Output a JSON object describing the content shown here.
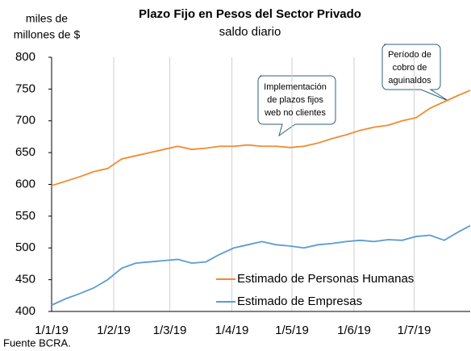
{
  "chart_data": {
    "type": "line",
    "title": "Plazo Fijo en Pesos del Sector Privado",
    "subtitle": "saldo diario",
    "y_label": [
      "miles de",
      "millones de $"
    ],
    "source": "Fuente BCRA.",
    "x": [
      "2019-01-01",
      "2019-01-08",
      "2019-01-15",
      "2019-01-22",
      "2019-01-29",
      "2019-02-05",
      "2019-02-12",
      "2019-02-19",
      "2019-02-26",
      "2019-03-05",
      "2019-03-12",
      "2019-03-19",
      "2019-03-26",
      "2019-04-02",
      "2019-04-09",
      "2019-04-16",
      "2019-04-23",
      "2019-04-30",
      "2019-05-07",
      "2019-05-14",
      "2019-05-21",
      "2019-05-28",
      "2019-06-04",
      "2019-06-11",
      "2019-06-18",
      "2019-06-25",
      "2019-07-02",
      "2019-07-09",
      "2019-07-16",
      "2019-07-23",
      "2019-07-29"
    ],
    "series": [
      {
        "name": "Estimado de Personas Humanas",
        "color": "#f28a30",
        "values": [
          598,
          605,
          612,
          620,
          625,
          640,
          645,
          650,
          655,
          660,
          655,
          657,
          660,
          660,
          662,
          660,
          660,
          658,
          660,
          665,
          672,
          678,
          685,
          690,
          693,
          700,
          705,
          720,
          730,
          740,
          748
        ]
      },
      {
        "name": "Estimado de Empresas",
        "color": "#5b9bd5",
        "values": [
          410,
          420,
          428,
          437,
          450,
          468,
          476,
          478,
          480,
          482,
          476,
          478,
          490,
          500,
          505,
          510,
          505,
          503,
          500,
          505,
          507,
          510,
          512,
          510,
          513,
          512,
          518,
          520,
          512,
          525,
          535
        ]
      }
    ],
    "xlim": [
      "2019-01-01",
      "2019-07-29"
    ],
    "xticks": [
      {
        "value": "2019-01-01",
        "label": "1/1/19"
      },
      {
        "value": "2019-02-01",
        "label": "1/2/19"
      },
      {
        "value": "2019-03-01",
        "label": "1/3/19"
      },
      {
        "value": "2019-04-01",
        "label": "1/4/19"
      },
      {
        "value": "2019-05-01",
        "label": "1/5/19"
      },
      {
        "value": "2019-06-01",
        "label": "1/6/19"
      },
      {
        "value": "2019-07-01",
        "label": "1/7/19"
      }
    ],
    "ylim": [
      400,
      800
    ],
    "yticks": [
      400,
      450,
      500,
      550,
      600,
      650,
      700,
      750,
      800
    ],
    "grid": "x",
    "legend": "lower right",
    "annotations": [
      {
        "text": [
          "Implementación",
          "de plazos fijos",
          "web no clientes"
        ]
      },
      {
        "text": [
          "Período de",
          "cobro de",
          "aguinaldos"
        ]
      }
    ]
  }
}
